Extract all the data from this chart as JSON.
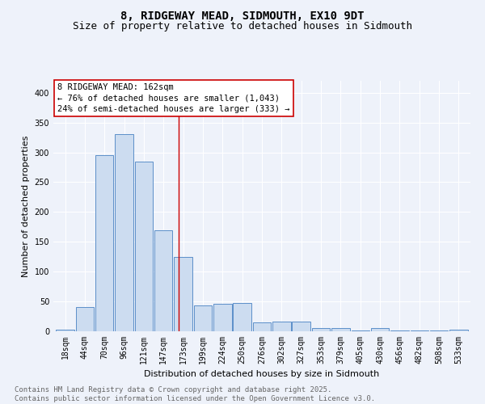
{
  "title": "8, RIDGEWAY MEAD, SIDMOUTH, EX10 9DT",
  "subtitle": "Size of property relative to detached houses in Sidmouth",
  "xlabel": "Distribution of detached houses by size in Sidmouth",
  "ylabel": "Number of detached properties",
  "bar_color": "#ccdcf0",
  "bar_edge_color": "#5b8fc9",
  "background_color": "#eef2fa",
  "grid_color": "#ffffff",
  "categories": [
    "18sqm",
    "44sqm",
    "70sqm",
    "96sqm",
    "121sqm",
    "147sqm",
    "173sqm",
    "199sqm",
    "224sqm",
    "250sqm",
    "276sqm",
    "302sqm",
    "327sqm",
    "353sqm",
    "379sqm",
    "405sqm",
    "430sqm",
    "456sqm",
    "482sqm",
    "508sqm",
    "533sqm"
  ],
  "values": [
    3,
    40,
    295,
    330,
    285,
    170,
    125,
    43,
    46,
    47,
    15,
    16,
    16,
    5,
    6,
    2,
    5,
    1,
    2,
    1,
    3
  ],
  "vline_x": 5.76,
  "vline_color": "#cc0000",
  "annotation_text": "8 RIDGEWAY MEAD: 162sqm\n← 76% of detached houses are smaller (1,043)\n24% of semi-detached houses are larger (333) →",
  "ylim": [
    0,
    420
  ],
  "yticks": [
    0,
    50,
    100,
    150,
    200,
    250,
    300,
    350,
    400
  ],
  "footer_text": "Contains HM Land Registry data © Crown copyright and database right 2025.\nContains public sector information licensed under the Open Government Licence v3.0.",
  "title_fontsize": 10,
  "subtitle_fontsize": 9,
  "label_fontsize": 8,
  "tick_fontsize": 7,
  "footer_fontsize": 6.5,
  "annot_fontsize": 7.5
}
